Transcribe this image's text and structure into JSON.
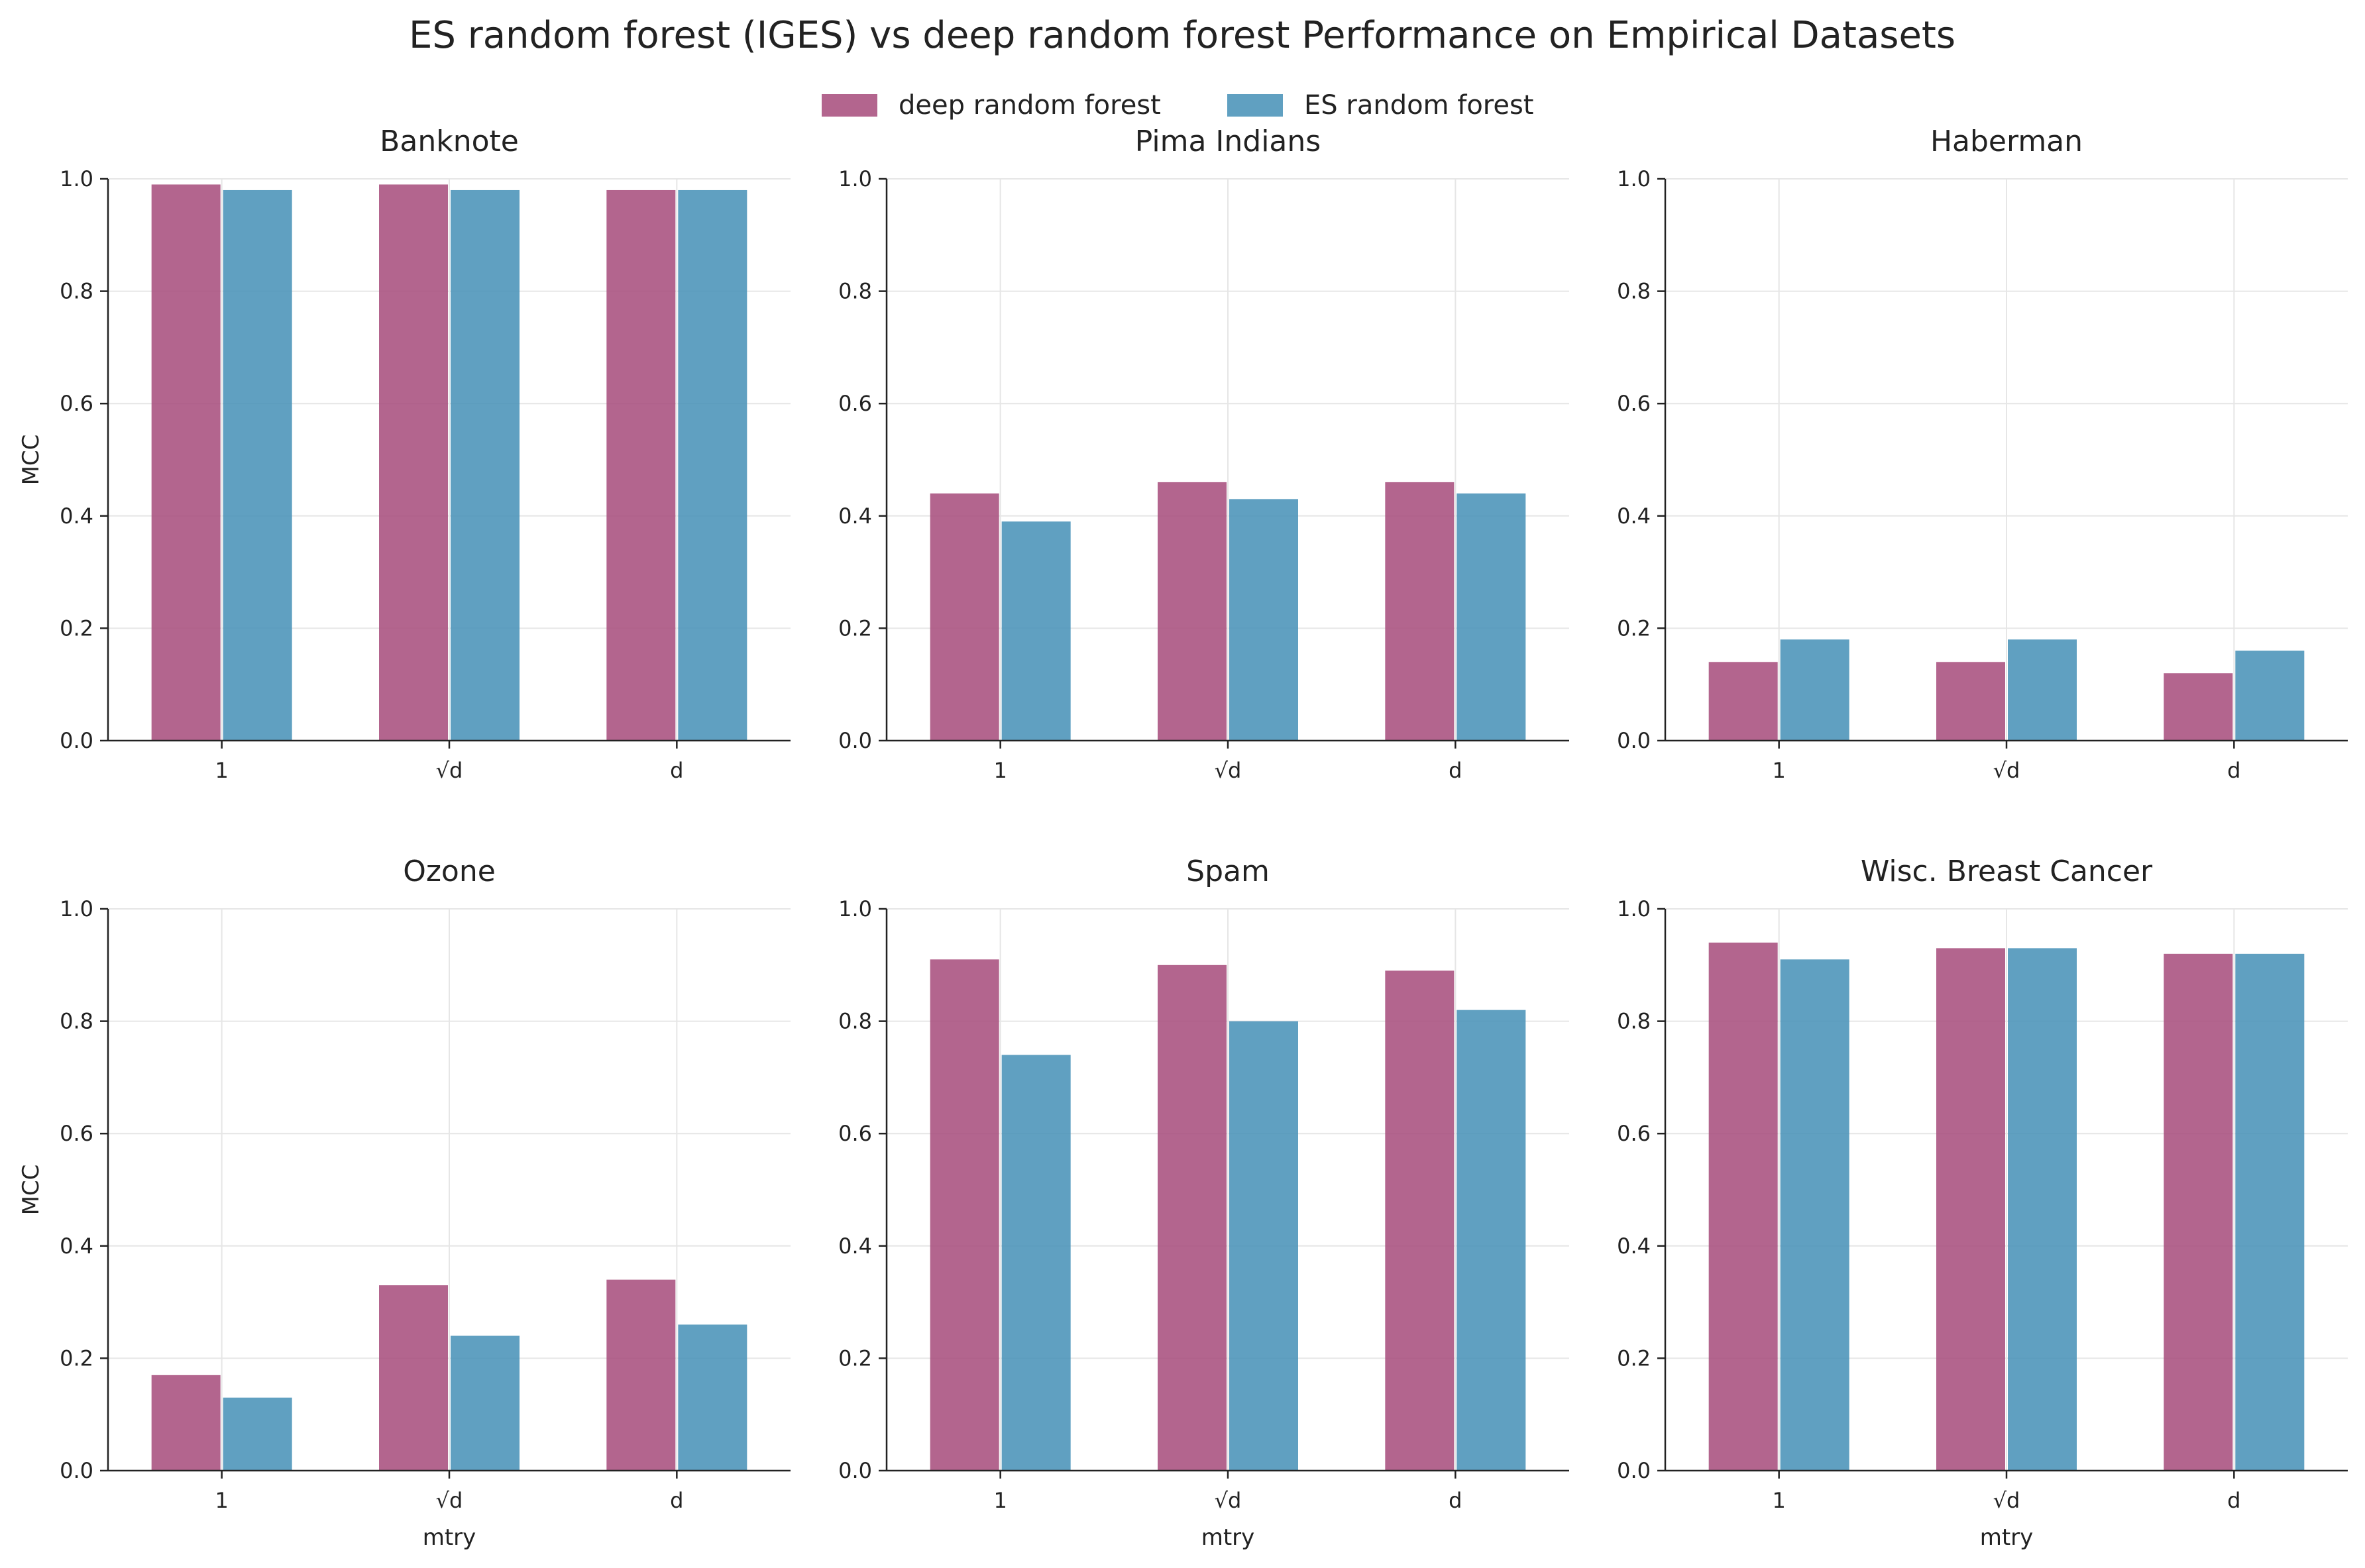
{
  "figure": {
    "title": "ES random forest (IGES) vs deep random forest Performance on Empirical Datasets"
  },
  "legend": {
    "placement": "top-center",
    "entries": [
      {
        "name": "deep random forest",
        "color": "#A8507E"
      },
      {
        "name": "ES random forest",
        "color": "#4A93B8"
      }
    ]
  },
  "chart_data": [
    {
      "type": "bar",
      "title": "Banknote",
      "categories": [
        "1",
        "√d",
        "d"
      ],
      "series": [
        {
          "name": "deep random forest",
          "values": [
            0.99,
            0.99,
            0.98
          ]
        },
        {
          "name": "ES random forest",
          "values": [
            0.98,
            0.98,
            0.98
          ]
        }
      ],
      "xlabel": "",
      "ylabel": "MCC",
      "ylim": [
        0,
        1
      ],
      "yticks": [
        "0.0",
        "0.2",
        "0.4",
        "0.6",
        "0.8",
        "1.0"
      ],
      "grid": true
    },
    {
      "type": "bar",
      "title": "Pima Indians",
      "categories": [
        "1",
        "√d",
        "d"
      ],
      "series": [
        {
          "name": "deep random forest",
          "values": [
            0.44,
            0.46,
            0.46
          ]
        },
        {
          "name": "ES random forest",
          "values": [
            0.39,
            0.43,
            0.44
          ]
        }
      ],
      "xlabel": "",
      "ylabel": "",
      "ylim": [
        0,
        1
      ],
      "yticks": [
        "0.0",
        "0.2",
        "0.4",
        "0.6",
        "0.8",
        "1.0"
      ],
      "grid": true
    },
    {
      "type": "bar",
      "title": "Haberman",
      "categories": [
        "1",
        "√d",
        "d"
      ],
      "series": [
        {
          "name": "deep random forest",
          "values": [
            0.14,
            0.14,
            0.12
          ]
        },
        {
          "name": "ES random forest",
          "values": [
            0.18,
            0.18,
            0.16
          ]
        }
      ],
      "xlabel": "",
      "ylabel": "",
      "ylim": [
        0,
        1
      ],
      "yticks": [
        "0.0",
        "0.2",
        "0.4",
        "0.6",
        "0.8",
        "1.0"
      ],
      "grid": true
    },
    {
      "type": "bar",
      "title": "Ozone",
      "categories": [
        "1",
        "√d",
        "d"
      ],
      "series": [
        {
          "name": "deep random forest",
          "values": [
            0.17,
            0.33,
            0.34
          ]
        },
        {
          "name": "ES random forest",
          "values": [
            0.13,
            0.24,
            0.26
          ]
        }
      ],
      "xlabel": "mtry",
      "ylabel": "MCC",
      "ylim": [
        0,
        1
      ],
      "yticks": [
        "0.0",
        "0.2",
        "0.4",
        "0.6",
        "0.8",
        "1.0"
      ],
      "grid": true
    },
    {
      "type": "bar",
      "title": "Spam",
      "categories": [
        "1",
        "√d",
        "d"
      ],
      "series": [
        {
          "name": "deep random forest",
          "values": [
            0.91,
            0.9,
            0.89
          ]
        },
        {
          "name": "ES random forest",
          "values": [
            0.74,
            0.8,
            0.82
          ]
        }
      ],
      "xlabel": "mtry",
      "ylabel": "",
      "ylim": [
        0,
        1
      ],
      "yticks": [
        "0.0",
        "0.2",
        "0.4",
        "0.6",
        "0.8",
        "1.0"
      ],
      "grid": true
    },
    {
      "type": "bar",
      "title": "Wisc. Breast Cancer",
      "categories": [
        "1",
        "√d",
        "d"
      ],
      "series": [
        {
          "name": "deep random forest",
          "values": [
            0.94,
            0.93,
            0.92
          ]
        },
        {
          "name": "ES random forest",
          "values": [
            0.91,
            0.93,
            0.92
          ]
        }
      ],
      "xlabel": "mtry",
      "ylabel": "",
      "ylim": [
        0,
        1
      ],
      "yticks": [
        "0.0",
        "0.2",
        "0.4",
        "0.6",
        "0.8",
        "1.0"
      ],
      "grid": true
    }
  ]
}
